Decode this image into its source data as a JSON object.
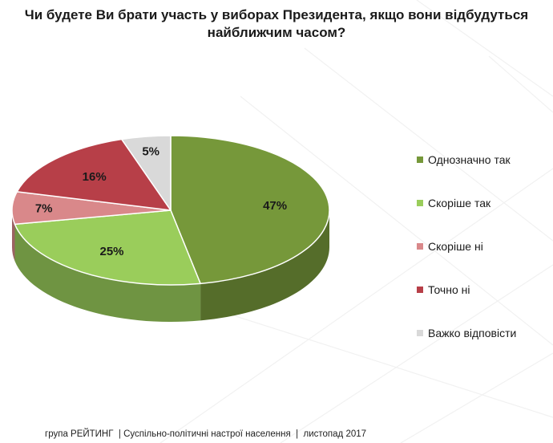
{
  "title": "Чи будете Ви брати участь у виборах Президента, якщо вони відбудуться найближчим часом?",
  "chart_data": {
    "type": "pie",
    "title": "Чи будете Ви брати участь у виборах Президента, якщо вони відбудуться найближчим часом?",
    "categories": [
      "Однозначно так",
      "Скоріше  так",
      "Скоріше  ні",
      "Точно ні",
      "Важко відповісти"
    ],
    "values": [
      47,
      25,
      7,
      16,
      5
    ],
    "unit": "%",
    "data_labels": [
      "47%",
      "25%",
      "7%",
      "16%",
      "5%"
    ],
    "colors": [
      "#76983a",
      "#9acd5b",
      "#d9888a",
      "#b73f48",
      "#d9d9d9"
    ],
    "legend_position": "right",
    "style": "3d"
  },
  "footer": {
    "org": "група РЕЙТИНГ",
    "topic": "Суспільно-політичні настрої населення",
    "date": "листопад 2017",
    "separator": "|"
  }
}
